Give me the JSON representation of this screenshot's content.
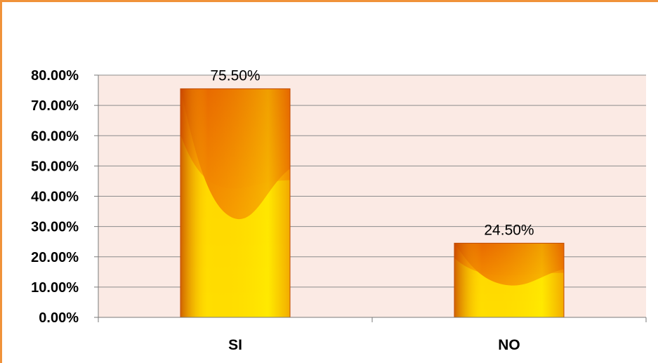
{
  "colors": {
    "frame_border": "#F0923A",
    "plot_background": "#FBEAE4",
    "gridline": "#8C8C8C",
    "bar_top": "#F08A00",
    "bar_bottom": "#FFF000",
    "bar_edge": "#C04A00"
  },
  "chart_data": {
    "type": "bar",
    "title": "",
    "xlabel": "",
    "ylabel": "",
    "categories": [
      "SI",
      "NO"
    ],
    "values": [
      75.5,
      24.5
    ],
    "data_labels": [
      "75.50%",
      "24.50%"
    ],
    "ylim": [
      0,
      80
    ],
    "yticks": [
      0,
      10,
      20,
      30,
      40,
      50,
      60,
      70,
      80
    ],
    "ytick_labels": [
      "0.00%",
      "10.00%",
      "20.00%",
      "30.00%",
      "40.00%",
      "50.00%",
      "60.00%",
      "70.00%",
      "80.00%"
    ],
    "grid": true,
    "legend": "none"
  }
}
